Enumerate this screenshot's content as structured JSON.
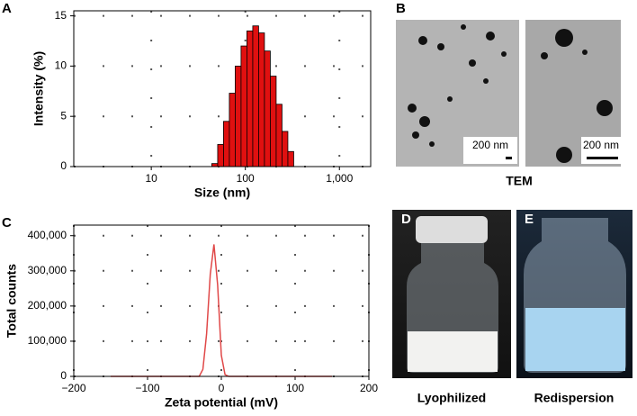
{
  "chart_data": [
    {
      "type": "histogram",
      "label": "A",
      "xlabel": "Size (nm)",
      "ylabel": "Intensity (%)",
      "log_x": true,
      "bins": [
        44,
        50.8,
        58.6,
        67.6,
        78.0,
        90.0,
        103.9,
        119.9,
        138.3,
        159.6,
        184.2,
        212.6,
        245.3,
        283.1,
        326.7
      ],
      "values": [
        0.3,
        2.2,
        4.5,
        7.3,
        10,
        12,
        13.5,
        14,
        13.3,
        11.5,
        9,
        6.2,
        3.5,
        1.5
      ],
      "color": "#e01010",
      "xlim": [
        1.5,
        2150
      ],
      "xticks": [
        10,
        100,
        {
          "value": 1000,
          "label": "1,000"
        }
      ],
      "ylim": [
        0,
        15.5
      ],
      "yticks": [
        0,
        5,
        10,
        15
      ],
      "grid": true
    },
    {
      "type": "line",
      "label": "C",
      "xlabel": "Zeta potential (mV)",
      "ylabel": "Total counts",
      "x": [
        -150,
        -30,
        -25,
        -20,
        -15,
        -10,
        -5,
        0,
        5,
        10,
        150
      ],
      "values": [
        0,
        0,
        20000,
        120000,
        290000,
        375000,
        260000,
        60000,
        5000,
        0,
        0
      ],
      "color": "#e04848",
      "xlim": [
        -200,
        200
      ],
      "xticks": [
        {
          "value": -200,
          "label": "−200"
        },
        {
          "value": -100,
          "label": "−100"
        },
        0,
        100,
        200
      ],
      "ylim": [
        0,
        430000
      ],
      "yticks": [
        0,
        {
          "value": 100000,
          "label": "100,000"
        },
        {
          "value": 200000,
          "label": "200,000"
        },
        {
          "value": 300000,
          "label": "300,000"
        },
        {
          "value": 400000,
          "label": "400,000"
        }
      ],
      "grid": true
    }
  ],
  "images": {
    "b": {
      "label": "B",
      "caption": "TEM",
      "scale_bars": [
        "200 nm",
        "200 nm"
      ]
    },
    "d": {
      "label": "D",
      "caption": "Lyophilized"
    },
    "e": {
      "label": "E",
      "caption": "Redispersion"
    }
  }
}
